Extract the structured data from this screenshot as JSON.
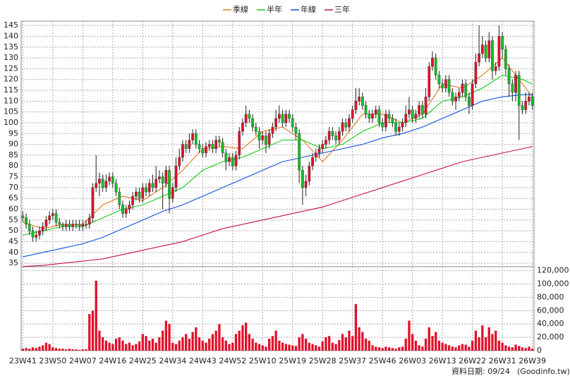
{
  "chart_data": {
    "type": "candlestick",
    "legend_position": "top",
    "grid": true,
    "up_color": "#e0102a",
    "down_color": "#10c020",
    "categories": [
      "23W41",
      null,
      null,
      null,
      null,
      null,
      null,
      null,
      null,
      "23W50",
      null,
      null,
      null,
      null,
      null,
      null,
      null,
      null,
      "24W07",
      null,
      null,
      null,
      null,
      null,
      null,
      null,
      null,
      "24W16",
      null,
      null,
      null,
      null,
      null,
      null,
      null,
      null,
      "24W25",
      null,
      null,
      null,
      null,
      null,
      null,
      null,
      null,
      "24W34",
      null,
      null,
      null,
      null,
      null,
      null,
      null,
      null,
      "24W43",
      null,
      null,
      null,
      null,
      null,
      null,
      null,
      null,
      "24W52",
      null,
      null,
      null,
      null,
      null,
      null,
      null,
      null,
      "25W10",
      null,
      null,
      null,
      null,
      null,
      null,
      null,
      null,
      "25W19",
      null,
      null,
      null,
      null,
      null,
      null,
      null,
      null,
      "25W28",
      null,
      null,
      null,
      null,
      null,
      null,
      null,
      null,
      "25W37",
      null,
      null,
      null,
      null,
      null,
      null,
      null,
      null,
      "25W46",
      null,
      null,
      null,
      null,
      null,
      null,
      null,
      null,
      "26W03",
      null,
      null,
      null,
      null,
      null,
      null,
      null,
      null,
      "26W13",
      null,
      null,
      null,
      null,
      null,
      null,
      null,
      null,
      "26W22",
      null,
      null,
      null,
      null,
      null,
      null,
      null,
      null,
      "26W31",
      null,
      null,
      null,
      null,
      null,
      null,
      null,
      null,
      "26W39"
    ],
    "open": [
      57,
      56,
      53,
      50,
      47,
      48,
      50,
      52,
      55,
      57,
      58,
      54,
      53,
      52,
      53,
      52,
      53,
      53,
      52,
      53,
      53,
      56,
      70,
      72,
      74,
      70,
      73,
      75,
      72,
      68,
      62,
      58,
      60,
      62,
      66,
      68,
      65,
      70,
      68,
      72,
      70,
      74,
      75,
      72,
      78,
      65,
      70,
      80,
      84,
      90,
      88,
      92,
      95,
      90,
      88,
      86,
      89,
      90,
      88,
      92,
      91,
      86,
      82,
      84,
      80,
      85,
      96,
      100,
      104,
      102,
      98,
      96,
      92,
      94,
      90,
      95,
      98,
      102,
      104,
      100,
      104,
      102,
      98,
      95,
      78,
      70,
      73,
      80,
      84,
      86,
      88,
      90,
      92,
      96,
      94,
      92,
      96,
      100,
      98,
      102,
      106,
      110,
      112,
      108,
      104,
      102,
      104,
      106,
      100,
      98,
      104,
      102,
      100,
      96,
      98,
      100,
      104,
      106,
      102,
      104,
      108,
      104,
      112,
      126,
      130,
      122,
      118,
      116,
      120,
      114,
      110,
      112,
      114,
      118,
      112,
      108,
      118,
      128,
      132,
      136,
      130,
      138,
      124,
      126,
      140,
      134,
      125,
      118,
      114,
      122,
      108,
      106,
      110,
      112
    ],
    "high": [
      59,
      58,
      55,
      52,
      50,
      52,
      54,
      57,
      59,
      60,
      60,
      56,
      54,
      55,
      55,
      55,
      55,
      55,
      55,
      55,
      58,
      72,
      85,
      77,
      76,
      76,
      77,
      77,
      74,
      70,
      64,
      62,
      64,
      68,
      70,
      70,
      72,
      72,
      74,
      76,
      80,
      78,
      77,
      80,
      80,
      72,
      84,
      88,
      92,
      92,
      95,
      97,
      97,
      92,
      90,
      91,
      92,
      92,
      94,
      94,
      93,
      88,
      86,
      86,
      87,
      98,
      102,
      108,
      106,
      104,
      100,
      98,
      96,
      96,
      97,
      100,
      106,
      108,
      106,
      106,
      106,
      104,
      100,
      97,
      80,
      76,
      82,
      86,
      88,
      90,
      92,
      94,
      98,
      98,
      96,
      98,
      102,
      102,
      104,
      108,
      116,
      116,
      114,
      110,
      106,
      106,
      108,
      108,
      102,
      106,
      106,
      104,
      102,
      100,
      102,
      108,
      112,
      108,
      106,
      110,
      110,
      116,
      128,
      133,
      132,
      124,
      120,
      122,
      122,
      116,
      114,
      116,
      120,
      120,
      114,
      120,
      132,
      145,
      140,
      138,
      142,
      140,
      128,
      145,
      142,
      136,
      127,
      120,
      124,
      124,
      110,
      114,
      114,
      114
    ],
    "low": [
      54,
      51,
      48,
      45,
      45,
      46,
      48,
      50,
      53,
      55,
      52,
      51,
      50,
      50,
      50,
      50,
      51,
      50,
      50,
      51,
      51,
      54,
      68,
      66,
      68,
      68,
      71,
      70,
      66,
      60,
      56,
      56,
      58,
      60,
      64,
      63,
      63,
      66,
      66,
      68,
      68,
      72,
      60,
      70,
      58,
      63,
      68,
      78,
      82,
      86,
      86,
      90,
      88,
      86,
      84,
      84,
      87,
      86,
      86,
      89,
      84,
      78,
      80,
      78,
      78,
      83,
      94,
      98,
      100,
      96,
      94,
      88,
      90,
      86,
      88,
      93,
      96,
      100,
      98,
      98,
      100,
      96,
      92,
      72,
      62,
      66,
      71,
      78,
      82,
      84,
      86,
      88,
      90,
      92,
      90,
      90,
      94,
      96,
      96,
      100,
      104,
      108,
      106,
      102,
      100,
      100,
      102,
      98,
      96,
      96,
      100,
      98,
      94,
      94,
      96,
      98,
      102,
      100,
      100,
      102,
      102,
      102,
      110,
      124,
      120,
      116,
      114,
      114,
      112,
      108,
      106,
      110,
      112,
      110,
      104,
      106,
      116,
      126,
      130,
      128,
      128,
      120,
      122,
      124,
      130,
      122,
      112,
      110,
      110,
      92,
      104,
      104,
      108,
      106
    ],
    "close": [
      56,
      53,
      50,
      47,
      48,
      50,
      52,
      55,
      57,
      58,
      54,
      53,
      52,
      53,
      52,
      53,
      53,
      52,
      53,
      53,
      56,
      70,
      72,
      74,
      70,
      73,
      75,
      72,
      68,
      62,
      58,
      60,
      62,
      66,
      68,
      65,
      70,
      68,
      72,
      70,
      74,
      75,
      72,
      78,
      65,
      70,
      80,
      84,
      90,
      88,
      92,
      95,
      90,
      88,
      86,
      89,
      90,
      88,
      92,
      91,
      86,
      82,
      84,
      80,
      85,
      96,
      100,
      104,
      102,
      98,
      96,
      92,
      94,
      90,
      95,
      98,
      102,
      104,
      100,
      104,
      102,
      98,
      95,
      78,
      70,
      73,
      80,
      84,
      86,
      88,
      90,
      92,
      96,
      94,
      92,
      96,
      100,
      98,
      102,
      106,
      110,
      112,
      108,
      104,
      102,
      104,
      106,
      100,
      98,
      104,
      102,
      100,
      96,
      98,
      100,
      104,
      106,
      102,
      104,
      108,
      104,
      112,
      126,
      130,
      122,
      118,
      116,
      120,
      114,
      110,
      112,
      114,
      118,
      112,
      108,
      118,
      128,
      132,
      136,
      130,
      138,
      124,
      126,
      140,
      134,
      125,
      118,
      114,
      122,
      108,
      106,
      110,
      112,
      108
    ],
    "ylim": [
      33.4,
      147
    ],
    "yticks": [
      35,
      40,
      45,
      50,
      55,
      60,
      65,
      70,
      75,
      80,
      85,
      90,
      95,
      100,
      105,
      110,
      115,
      120,
      125,
      130,
      135,
      140,
      145
    ],
    "series": [
      {
        "name": "季線",
        "color": "#e0781e",
        "x": [
          0,
          6,
          12,
          18,
          24,
          30,
          36,
          42,
          48,
          54,
          60,
          66,
          72,
          78,
          84,
          90,
          96,
          102,
          108,
          114,
          120,
          126,
          132,
          138,
          144,
          150,
          153
        ],
        "values": [
          54,
          51,
          53,
          53,
          62,
          66,
          64,
          70,
          78,
          88,
          89,
          88,
          96,
          98,
          92,
          82,
          92,
          104,
          104,
          100,
          104,
          118,
          116,
          122,
          130,
          118,
          112
        ]
      },
      {
        "name": "半年",
        "color": "#18c818",
        "x": [
          0,
          6,
          12,
          18,
          24,
          30,
          36,
          42,
          48,
          54,
          60,
          66,
          72,
          78,
          84,
          90,
          96,
          102,
          108,
          114,
          120,
          126,
          132,
          138,
          144,
          150,
          153
        ],
        "values": [
          48,
          50,
          52,
          52,
          56,
          60,
          62,
          66,
          70,
          78,
          82,
          84,
          88,
          92,
          92,
          88,
          90,
          96,
          100,
          100,
          102,
          110,
          112,
          116,
          122,
          120,
          118
        ]
      },
      {
        "name": "年線",
        "color": "#1050e0",
        "x": [
          0,
          6,
          12,
          18,
          24,
          30,
          36,
          42,
          48,
          54,
          60,
          66,
          72,
          78,
          84,
          90,
          96,
          102,
          108,
          114,
          120,
          126,
          132,
          138,
          144,
          150,
          153
        ],
        "values": [
          38,
          40,
          42,
          44,
          47,
          51,
          55,
          59,
          62,
          66,
          70,
          74,
          78,
          82,
          84,
          86,
          88,
          90,
          93,
          95,
          98,
          102,
          106,
          110,
          112,
          113,
          113
        ]
      },
      {
        "name": "三年",
        "color": "#c8104a",
        "x": [
          0,
          6,
          12,
          18,
          24,
          30,
          36,
          42,
          48,
          54,
          60,
          66,
          72,
          78,
          84,
          90,
          96,
          102,
          108,
          114,
          120,
          126,
          132,
          138,
          144,
          150,
          153
        ],
        "values": [
          33.5,
          34,
          35,
          36,
          37,
          39,
          41,
          43,
          45,
          48,
          51,
          53,
          55,
          57,
          59,
          61,
          64,
          67,
          70,
          73,
          76,
          79,
          82,
          84,
          86,
          88,
          89
        ]
      }
    ],
    "volume": {
      "color": "#e0102a",
      "ylim": [
        0,
        126000
      ],
      "yticks": [
        0,
        {
          "value": 20000,
          "label": "20,000"
        },
        {
          "value": 40000,
          "label": "40,000"
        },
        {
          "value": 60000,
          "label": "60,000"
        },
        {
          "value": 80000,
          "label": "80,000"
        },
        {
          "value": 100000,
          "label": "100,000"
        },
        {
          "value": 120000,
          "label": "120,000"
        }
      ],
      "values": [
        3000,
        4000,
        3000,
        5000,
        4000,
        6000,
        8000,
        12000,
        10000,
        5000,
        4000,
        3000,
        3000,
        2000,
        3000,
        2000,
        2000,
        1000,
        2000,
        2000,
        55000,
        60000,
        105000,
        30000,
        20000,
        15000,
        12000,
        10000,
        18000,
        20000,
        15000,
        10000,
        12000,
        8000,
        10000,
        14000,
        25000,
        22000,
        15000,
        18000,
        12000,
        20000,
        30000,
        45000,
        40000,
        12000,
        10000,
        15000,
        20000,
        25000,
        18000,
        28000,
        35000,
        20000,
        15000,
        12000,
        18000,
        25000,
        30000,
        40000,
        20000,
        15000,
        10000,
        12000,
        25000,
        30000,
        38000,
        42000,
        25000,
        18000,
        12000,
        10000,
        8000,
        6000,
        18000,
        22000,
        30000,
        15000,
        12000,
        10000,
        9000,
        8000,
        7000,
        20000,
        25000,
        18000,
        12000,
        10000,
        8000,
        6000,
        14000,
        20000,
        22000,
        12000,
        10000,
        16000,
        25000,
        20000,
        30000,
        22000,
        70000,
        35000,
        28000,
        18000,
        15000,
        8000,
        6000,
        5000,
        4000,
        6000,
        5000,
        4000,
        3000,
        5000,
        6000,
        18000,
        45000,
        25000,
        15000,
        8000,
        6000,
        18000,
        35000,
        22000,
        28000,
        15000,
        12000,
        10000,
        8000,
        6000,
        5000,
        8000,
        10000,
        9000,
        6000,
        15000,
        30000,
        20000,
        38000,
        20000,
        35000,
        25000,
        30000,
        15000,
        12000,
        8000,
        6000,
        5000,
        9000,
        7000,
        5000,
        4000,
        6000,
        3000
      ]
    },
    "date_note": "資料日期: 09/24",
    "source": "(Goodinfo.tw)"
  }
}
